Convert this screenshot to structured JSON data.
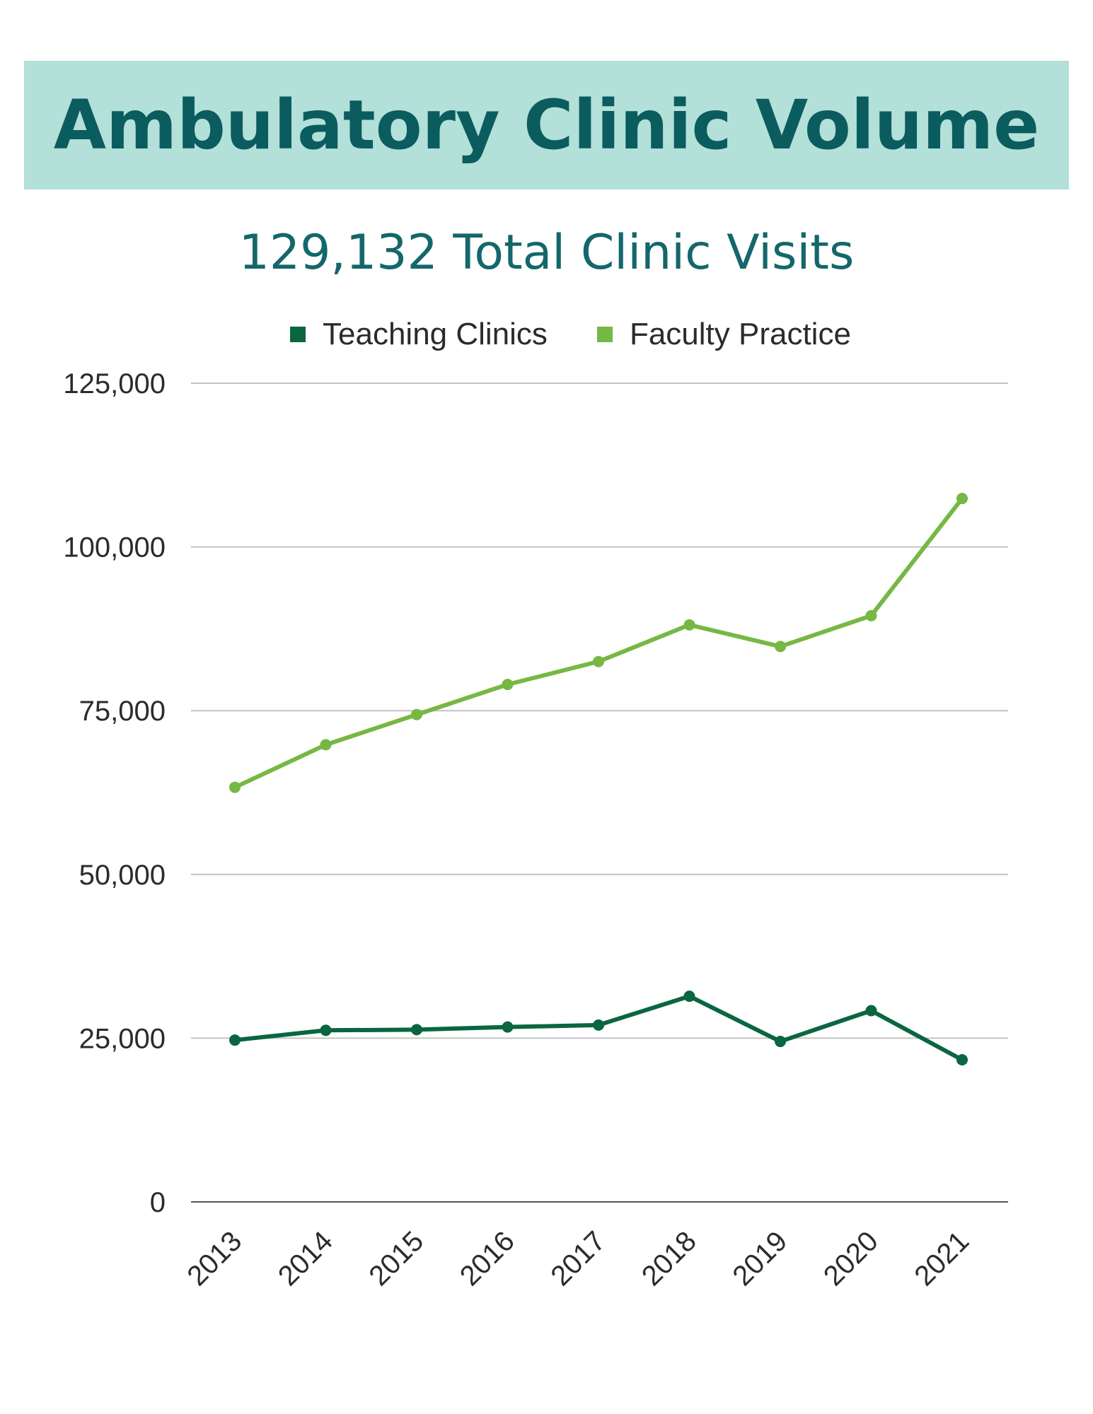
{
  "header": {
    "title": "Ambulatory Clinic Volume"
  },
  "chart_data": {
    "type": "line",
    "title": "",
    "subtitle": "129,132 Total Clinic Visits",
    "xlabel": "",
    "ylabel": "",
    "ylim": [
      0,
      125000
    ],
    "yticks": [
      "0",
      "25,000",
      "50,000",
      "75,000",
      "100,000",
      "125,000"
    ],
    "categories": [
      "2013",
      "2014",
      "2015",
      "2016",
      "2017",
      "2018",
      "2019",
      "2020",
      "2021"
    ],
    "series": [
      {
        "name": "Teaching Clinics",
        "color": "#0a6640",
        "values": [
          24700,
          26200,
          26300,
          26700,
          27000,
          31400,
          24500,
          29200,
          21700
        ]
      },
      {
        "name": "Faculty Practice",
        "color": "#76b843",
        "values": [
          63300,
          69800,
          74400,
          79000,
          82500,
          88100,
          84800,
          89500,
          107400
        ]
      }
    ],
    "grid": true,
    "legend": "top"
  }
}
